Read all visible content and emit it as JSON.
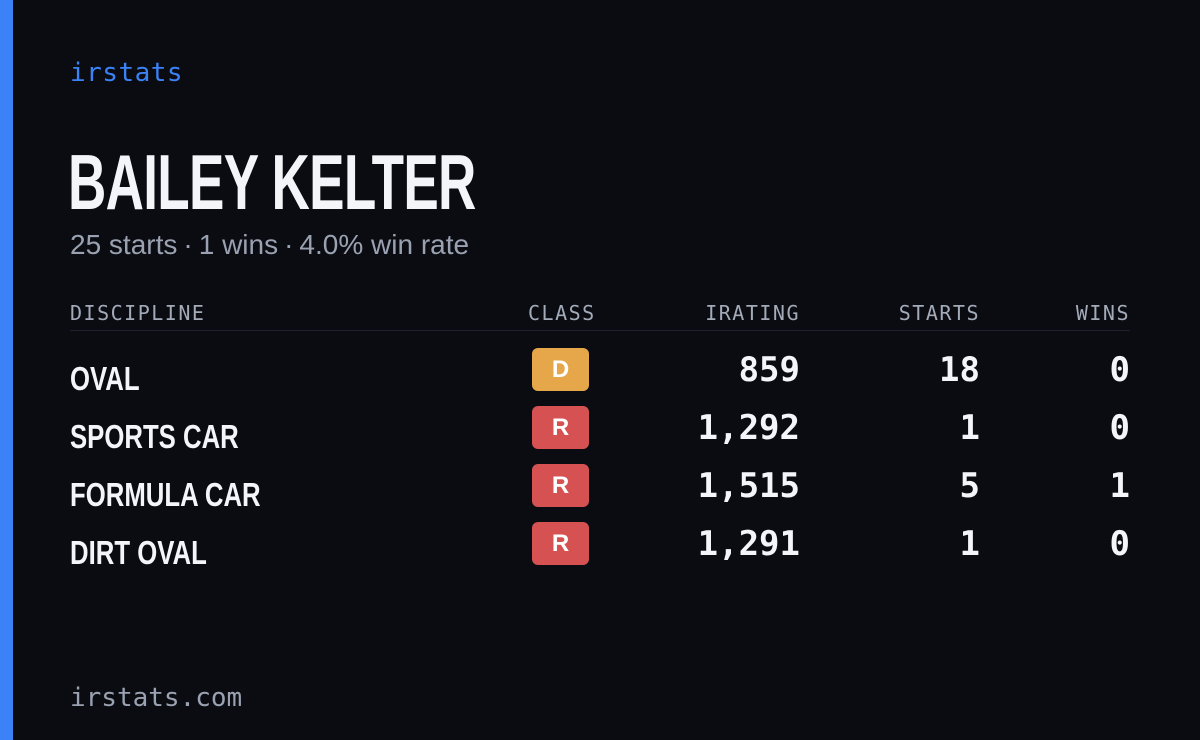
{
  "colors": {
    "background": "#0a0c12",
    "accent": "#3b82f6",
    "text": "#f4f5f8",
    "muted": "#9aa2b1",
    "class_d": "#e6a74a",
    "class_r": "#d65151"
  },
  "brand": "irstats",
  "player": {
    "name": "BAILEY KELTER"
  },
  "summary": {
    "starts": "25 starts",
    "sep1": "·",
    "wins": "1 wins",
    "sep2": "·",
    "win_rate": "4.0% win rate"
  },
  "table": {
    "headers": {
      "discipline": "DISCIPLINE",
      "class": "CLASS",
      "irating": "IRATING",
      "starts": "STARTS",
      "wins": "WINS"
    },
    "rows": [
      {
        "discipline": "OVAL",
        "class": "D",
        "class_color": "#e6a74a",
        "irating": "859",
        "starts": "18",
        "wins": "0"
      },
      {
        "discipline": "SPORTS CAR",
        "class": "R",
        "class_color": "#d65151",
        "irating": "1,292",
        "starts": "1",
        "wins": "0"
      },
      {
        "discipline": "FORMULA CAR",
        "class": "R",
        "class_color": "#d65151",
        "irating": "1,515",
        "starts": "5",
        "wins": "1"
      },
      {
        "discipline": "DIRT OVAL",
        "class": "R",
        "class_color": "#d65151",
        "irating": "1,291",
        "starts": "1",
        "wins": "0"
      }
    ]
  },
  "footer": {
    "url": "irstats.com"
  }
}
